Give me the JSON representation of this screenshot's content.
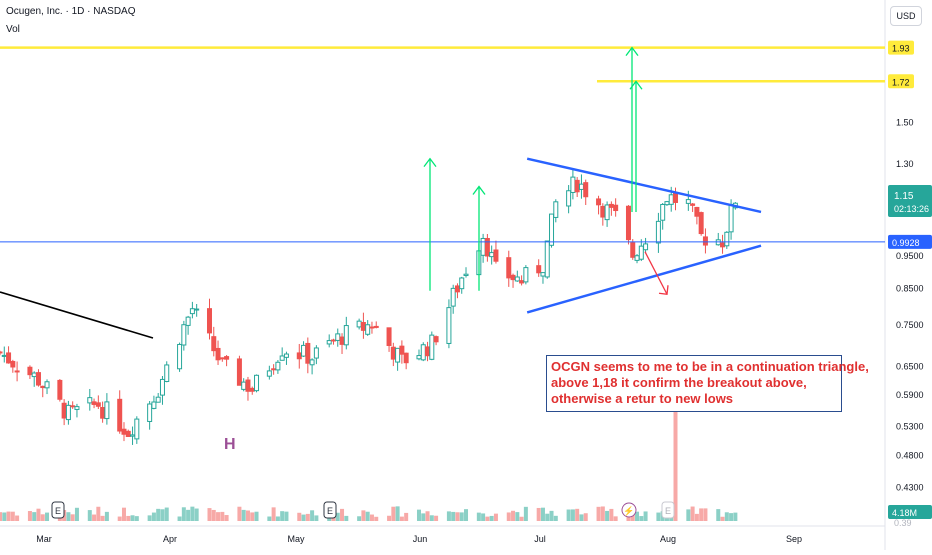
{
  "header": {
    "title": "Ocugen, Inc. · 1D · NASDAQ",
    "vol_label": "Vol",
    "currency": "USD"
  },
  "price_axis": {
    "ticks": [
      "1.50",
      "1.30",
      "0.9500",
      "0.8500",
      "0.7500",
      "0.6500",
      "0.5900",
      "0.5300",
      "0.4800",
      "0.4300"
    ],
    "badges": {
      "line_1_93": "1.93",
      "line_1_72": "1.72",
      "last_price": "1.15",
      "countdown": "02:13:26",
      "horizontal_line": "0.9928",
      "volume": "4.18M",
      "bottom_cut": "0.39"
    }
  },
  "time_axis": {
    "labels": [
      "Mar",
      "Apr",
      "May",
      "Jun",
      "Jul",
      "Aug",
      "Sep"
    ]
  },
  "annotations": {
    "pattern_letter": "H",
    "earnings_marker": "E",
    "note_lines": [
      "OCGN  seems to me to be in a continuation triangle,",
      "above 1,18 it confirm the breakout above,",
      "otherwise a retur to new lows"
    ]
  },
  "colors": {
    "up": "#26a69a",
    "down": "#ef5350",
    "trend_lines": "#2962ff",
    "target_lines": "#ffeb3b",
    "arrows": "#00e676",
    "down_arrow": "#f23645",
    "last_price_badge": "#26a69a",
    "horizontal_badge": "#2962ff"
  },
  "chart_data": {
    "type": "candlestick",
    "symbol": "OCGN",
    "interval": "1D",
    "exchange": "NASDAQ",
    "y_scale": "log",
    "ylim": [
      0.39,
      2.05
    ],
    "x_range": [
      "2024-02-19",
      "2024-09-13"
    ],
    "last_price": 1.15,
    "horizontal_levels": [
      1.93,
      1.72,
      0.9928
    ],
    "ohlc_anchors": [
      {
        "date": "2024-02-19",
        "close": 0.68
      },
      {
        "date": "2024-02-28",
        "close": 0.62
      },
      {
        "date": "2024-03-06",
        "close": 0.55
      },
      {
        "date": "2024-03-13",
        "close": 0.57
      },
      {
        "date": "2024-03-20",
        "close": 0.52
      },
      {
        "date": "2024-03-27",
        "close": 0.6
      },
      {
        "date": "2024-04-01",
        "close": 0.72
      },
      {
        "date": "2024-04-04",
        "close": 0.79
      },
      {
        "date": "2024-04-11",
        "close": 0.65
      },
      {
        "date": "2024-04-18",
        "close": 0.6
      },
      {
        "date": "2024-04-25",
        "close": 0.69
      },
      {
        "date": "2024-05-02",
        "close": 0.67
      },
      {
        "date": "2024-05-09",
        "close": 0.72
      },
      {
        "date": "2024-05-16",
        "close": 0.75
      },
      {
        "date": "2024-05-23",
        "close": 0.66
      },
      {
        "date": "2024-05-30",
        "close": 0.7
      },
      {
        "date": "2024-06-06",
        "close": 0.88
      },
      {
        "date": "2024-06-11",
        "close": 1.02
      },
      {
        "date": "2024-06-14",
        "close": 0.9
      },
      {
        "date": "2024-06-20",
        "close": 0.87
      },
      {
        "date": "2024-06-25",
        "close": 0.92
      },
      {
        "date": "2024-06-28",
        "close": 1.13
      },
      {
        "date": "2024-07-03",
        "close": 1.22
      },
      {
        "date": "2024-07-09",
        "close": 1.12
      },
      {
        "date": "2024-07-12",
        "close": 1.08
      },
      {
        "date": "2024-07-16",
        "close": 0.95
      },
      {
        "date": "2024-07-19",
        "close": 1.01
      },
      {
        "date": "2024-07-24",
        "close": 1.16
      },
      {
        "date": "2024-07-29",
        "close": 1.13
      },
      {
        "date": "2024-08-01",
        "close": 1.01
      },
      {
        "date": "2024-08-06",
        "close": 1.0
      },
      {
        "date": "2024-08-09",
        "close": 1.15
      }
    ],
    "volume_spike": {
      "date": "2024-07-26",
      "volume_vs_typical": 6.0
    },
    "triangle": {
      "upper": [
        [
          "2024-07-03",
          1.32
        ],
        [
          "2024-08-15",
          1.1
        ]
      ],
      "lower": [
        [
          "2024-07-03",
          0.78
        ],
        [
          "2024-08-15",
          0.98
        ]
      ]
    },
    "arrows_up": [
      {
        "date": "2024-07-03",
        "from": 0.84,
        "to": 1.32
      },
      {
        "date": "2024-07-22",
        "from": 0.84,
        "to": 1.2
      },
      {
        "date": "2024-08-10",
        "from": 1.1,
        "to": 1.93
      },
      {
        "date": "2024-08-12",
        "from": 1.1,
        "to": 1.72
      }
    ],
    "arrow_down": {
      "date": "2024-08-16",
      "from": 0.96,
      "to": 0.83
    },
    "earnings": [
      "2024-02-23",
      "2024-05-13",
      "2024-08-14"
    ]
  }
}
